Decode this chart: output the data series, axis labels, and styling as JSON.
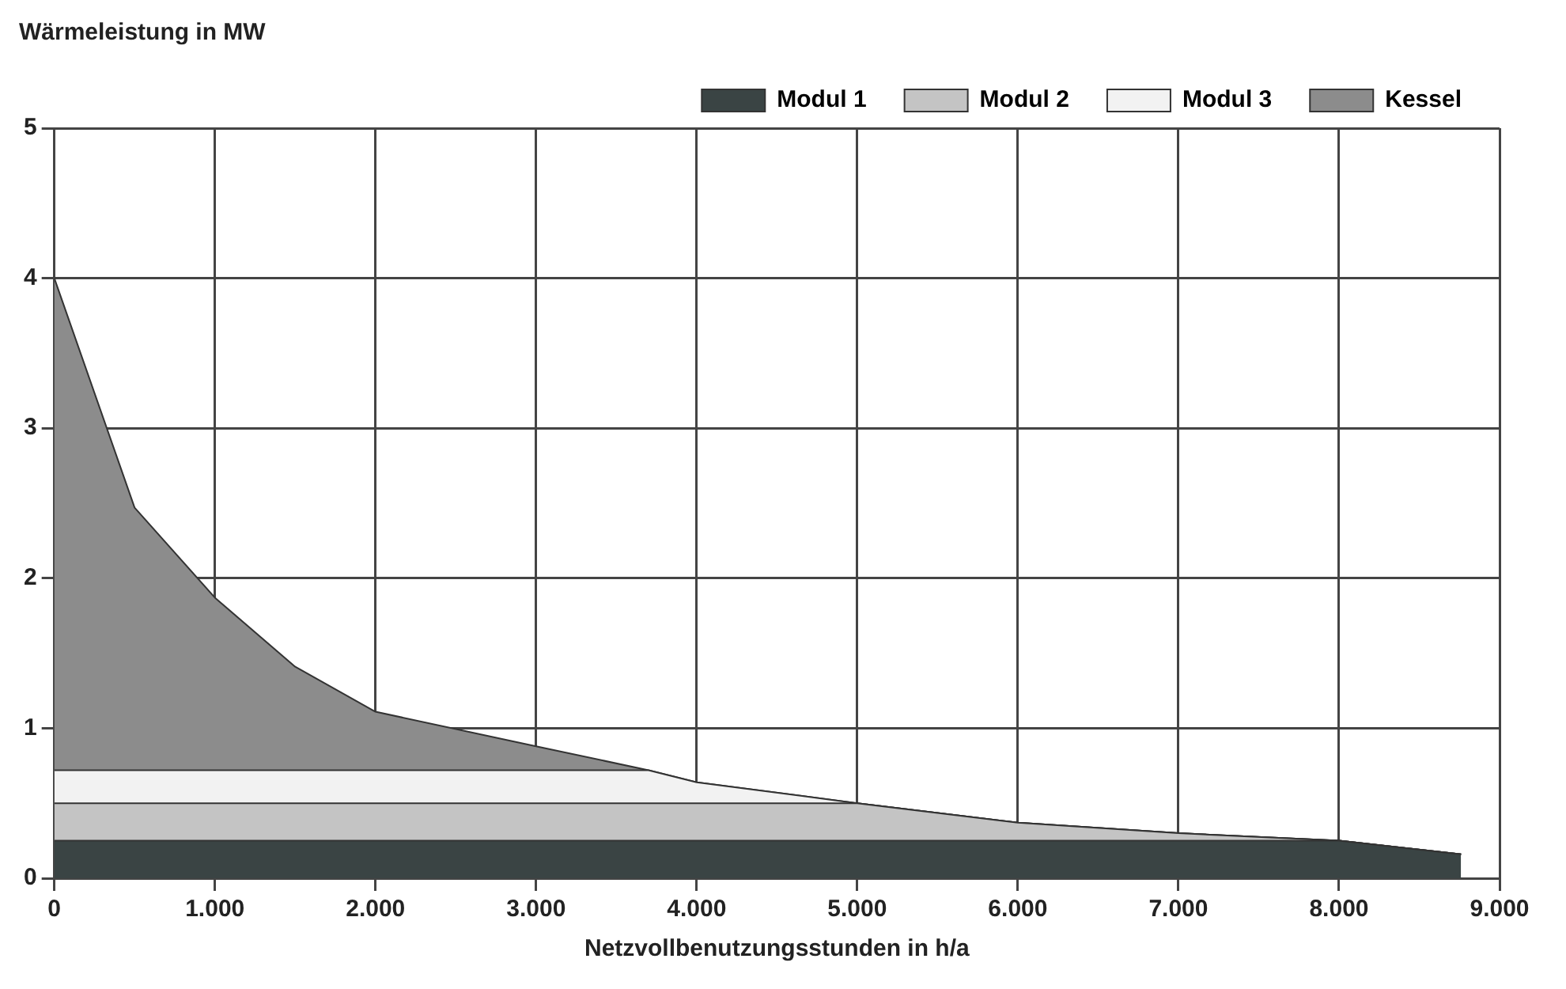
{
  "chart_data": {
    "type": "area",
    "stacked": true,
    "ylabel": "Wärmeleistung in MW",
    "xlabel": "Netzvollbenutzungsstunden in h/a",
    "x": [
      0,
      500,
      1000,
      1500,
      2000,
      3000,
      3700,
      4000,
      5000,
      6000,
      7000,
      8000,
      8760
    ],
    "series": [
      {
        "name": "Modul 1",
        "color": "#3a4444",
        "values": [
          0.25,
          0.25,
          0.25,
          0.25,
          0.25,
          0.25,
          0.25,
          0.25,
          0.25,
          0.25,
          0.25,
          0.25,
          0.16
        ]
      },
      {
        "name": "Modul 2",
        "color": "#c4c4c4",
        "values": [
          0.25,
          0.25,
          0.25,
          0.25,
          0.25,
          0.25,
          0.25,
          0.25,
          0.25,
          0.12,
          0.05,
          0,
          0
        ]
      },
      {
        "name": "Modul 3",
        "color": "#f2f2f2",
        "values": [
          0.22,
          0.22,
          0.22,
          0.22,
          0.22,
          0.22,
          0.22,
          0.14,
          0,
          0,
          0,
          0,
          0
        ]
      },
      {
        "name": "Kessel",
        "color": "#8c8c8c",
        "values": [
          3.28,
          1.75,
          1.15,
          0.69,
          0.39,
          0.16,
          0,
          0,
          0,
          0,
          0,
          0,
          0
        ]
      }
    ],
    "xlim": [
      0,
      9000
    ],
    "xticks": [
      0,
      {
        "value": 1000,
        "label": "1.000"
      },
      {
        "value": 2000,
        "label": "2.000"
      },
      {
        "value": 3000,
        "label": "3.000"
      },
      {
        "value": 4000,
        "label": "4.000"
      },
      {
        "value": 5000,
        "label": "5.000"
      },
      {
        "value": 6000,
        "label": "6.000"
      },
      {
        "value": 7000,
        "label": "7.000"
      },
      {
        "value": 8000,
        "label": "8.000"
      },
      {
        "value": 9000,
        "label": "9.000"
      }
    ],
    "ylim": [
      0,
      5
    ],
    "yticks": [
      0,
      1,
      2,
      3,
      4,
      5
    ],
    "grid": true,
    "legend": "top right"
  }
}
